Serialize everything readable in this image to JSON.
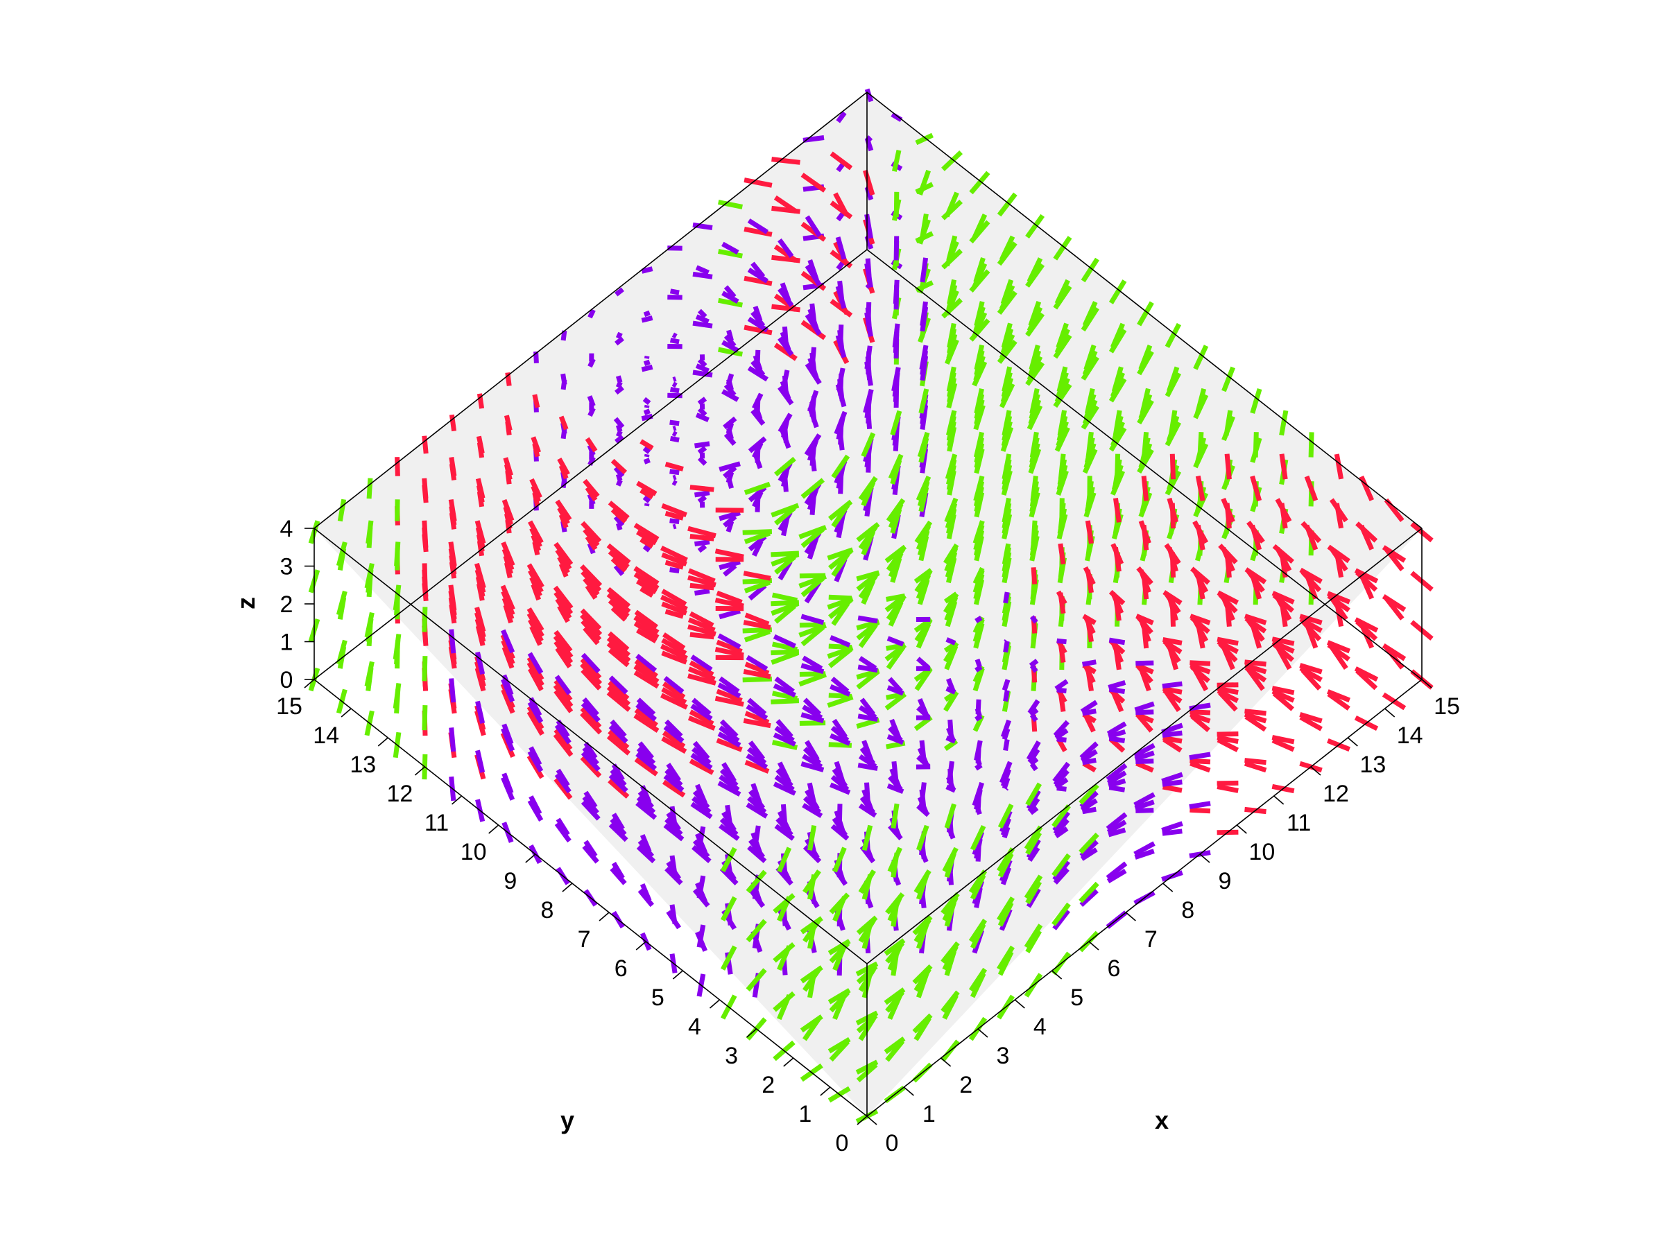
{
  "chart_data": {
    "type": "3d-vector-field",
    "title": "",
    "xlabel": "x",
    "ylabel": "y",
    "zlabel": "z",
    "xlim": [
      0,
      15
    ],
    "ylim": [
      0,
      15
    ],
    "zlim": [
      0,
      4
    ],
    "x_ticks": [
      "0",
      "1",
      "2",
      "3",
      "4",
      "5",
      "6",
      "7",
      "8",
      "9",
      "10",
      "11",
      "12",
      "13",
      "14",
      "15"
    ],
    "y_ticks": [
      "0",
      "1",
      "2",
      "3",
      "4",
      "5",
      "6",
      "7",
      "8",
      "9",
      "10",
      "11",
      "12",
      "13",
      "14",
      "15"
    ],
    "z_ticks": [
      "0",
      "1",
      "2",
      "3",
      "4"
    ],
    "grid": {
      "x_from": 0,
      "x_to": 15,
      "x_step": 0.75,
      "y_from": 0,
      "y_to": 15,
      "y_step": 0.75,
      "z_levels": [
        0,
        1.3,
        2.6,
        3.9
      ]
    },
    "field": {
      "description_of_components": "directional segments colored by orientation",
      "colors": {
        "x_dominant": "#66ee00",
        "y_dominant": "#ff1a40",
        "z_dominant": "#8800ee",
        "mixed": "#aa22aa"
      }
    },
    "view": {
      "projection": "top-down oblique",
      "floor_color": "#f0f0f0"
    }
  }
}
